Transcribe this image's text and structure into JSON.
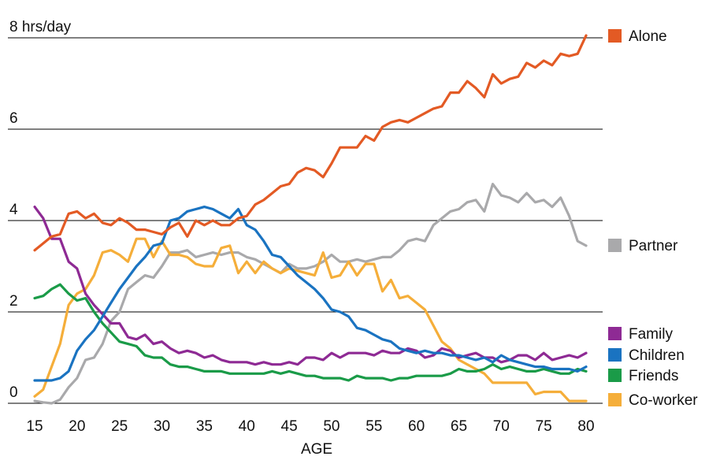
{
  "chart_data": {
    "type": "line",
    "title": "",
    "xlabel": "AGE",
    "ylabel": "",
    "y_unit_label": "8 hrs/day",
    "xlim": [
      15,
      80
    ],
    "ylim": [
      0,
      8
    ],
    "x_ticks": [
      "15",
      "20",
      "25",
      "30",
      "35",
      "40",
      "45",
      "50",
      "55",
      "60",
      "65",
      "70",
      "75",
      "80"
    ],
    "y_ticks": [
      {
        "value": 8,
        "label": "8 hrs/day"
      },
      {
        "value": 6,
        "label": "6"
      },
      {
        "value": 4,
        "label": "4"
      },
      {
        "value": 2,
        "label": "2"
      },
      {
        "value": 0,
        "label": "0"
      }
    ],
    "grid": true,
    "legend_placement": "right, at line ends",
    "x": [
      15,
      16,
      17,
      18,
      19,
      20,
      21,
      22,
      23,
      24,
      25,
      26,
      27,
      28,
      29,
      30,
      31,
      32,
      33,
      34,
      35,
      36,
      37,
      38,
      39,
      40,
      41,
      42,
      43,
      44,
      45,
      46,
      47,
      48,
      49,
      50,
      51,
      52,
      53,
      54,
      55,
      56,
      57,
      58,
      59,
      60,
      61,
      62,
      63,
      64,
      65,
      66,
      67,
      68,
      69,
      70,
      71,
      72,
      73,
      74,
      75,
      76,
      77,
      78,
      79,
      80
    ],
    "series": [
      {
        "name": "Alone",
        "color": "#e35a24",
        "values": [
          3.35,
          3.5,
          3.65,
          3.7,
          4.15,
          4.2,
          4.05,
          4.15,
          3.95,
          3.9,
          4.05,
          3.95,
          3.8,
          3.8,
          3.75,
          3.7,
          3.85,
          3.95,
          3.65,
          4.0,
          3.9,
          4.0,
          3.9,
          3.9,
          4.05,
          4.1,
          4.35,
          4.45,
          4.6,
          4.75,
          4.8,
          5.05,
          5.15,
          5.1,
          4.95,
          5.25,
          5.6,
          5.6,
          5.6,
          5.85,
          5.75,
          6.05,
          6.15,
          6.2,
          6.15,
          6.25,
          6.35,
          6.45,
          6.5,
          6.8,
          6.8,
          7.05,
          6.9,
          6.7,
          7.2,
          7.0,
          7.1,
          7.15,
          7.45,
          7.35,
          7.5,
          7.4,
          7.65,
          7.6,
          7.65,
          8.05
        ]
      },
      {
        "name": "Partner",
        "color": "#a9a9ab",
        "values": [
          0.05,
          0.02,
          0.0,
          0.08,
          0.35,
          0.55,
          0.95,
          1.0,
          1.3,
          1.8,
          2.0,
          2.5,
          2.65,
          2.8,
          2.75,
          3.0,
          3.3,
          3.3,
          3.35,
          3.2,
          3.25,
          3.3,
          3.25,
          3.3,
          3.3,
          3.2,
          3.15,
          3.05,
          2.95,
          2.85,
          3.05,
          2.95,
          2.95,
          3.0,
          3.1,
          3.25,
          3.1,
          3.1,
          3.15,
          3.1,
          3.15,
          3.2,
          3.2,
          3.35,
          3.55,
          3.6,
          3.55,
          3.9,
          4.05,
          4.2,
          4.25,
          4.4,
          4.45,
          4.2,
          4.8,
          4.55,
          4.5,
          4.4,
          4.6,
          4.4,
          4.45,
          4.3,
          4.5,
          4.1,
          3.55,
          3.45
        ]
      },
      {
        "name": "Family",
        "color": "#8e2a94",
        "values": [
          4.3,
          4.05,
          3.6,
          3.6,
          3.1,
          2.95,
          2.4,
          2.15,
          1.95,
          1.75,
          1.75,
          1.45,
          1.4,
          1.5,
          1.3,
          1.35,
          1.2,
          1.1,
          1.15,
          1.1,
          1.0,
          1.05,
          0.95,
          0.9,
          0.9,
          0.9,
          0.85,
          0.9,
          0.85,
          0.85,
          0.9,
          0.85,
          1.0,
          1.0,
          0.95,
          1.1,
          1.0,
          1.1,
          1.1,
          1.1,
          1.05,
          1.15,
          1.1,
          1.1,
          1.2,
          1.15,
          1.0,
          1.05,
          1.2,
          1.15,
          1.0,
          1.05,
          1.1,
          1.0,
          1.0,
          0.9,
          0.95,
          1.05,
          1.05,
          0.95,
          1.1,
          0.95,
          1.0,
          1.05,
          1.0,
          1.1
        ]
      },
      {
        "name": "Children",
        "color": "#1a73c1",
        "values": [
          0.5,
          0.5,
          0.5,
          0.55,
          0.7,
          1.15,
          1.4,
          1.6,
          1.9,
          2.2,
          2.5,
          2.75,
          3.0,
          3.2,
          3.45,
          3.5,
          4.0,
          4.05,
          4.2,
          4.25,
          4.3,
          4.25,
          4.15,
          4.05,
          4.25,
          3.9,
          3.8,
          3.55,
          3.25,
          3.2,
          3.0,
          2.8,
          2.65,
          2.5,
          2.3,
          2.05,
          2.0,
          1.9,
          1.65,
          1.6,
          1.5,
          1.4,
          1.35,
          1.2,
          1.15,
          1.1,
          1.15,
          1.1,
          1.1,
          1.05,
          1.05,
          1.0,
          0.95,
          1.0,
          0.9,
          1.05,
          0.95,
          0.9,
          0.85,
          0.8,
          0.8,
          0.75,
          0.75,
          0.75,
          0.7,
          0.8
        ]
      },
      {
        "name": "Friends",
        "color": "#1a9b48",
        "values": [
          2.3,
          2.35,
          2.5,
          2.6,
          2.4,
          2.25,
          2.3,
          2.0,
          1.75,
          1.55,
          1.35,
          1.3,
          1.25,
          1.05,
          1.0,
          1.0,
          0.85,
          0.8,
          0.8,
          0.75,
          0.7,
          0.7,
          0.7,
          0.65,
          0.65,
          0.65,
          0.65,
          0.65,
          0.7,
          0.65,
          0.7,
          0.65,
          0.6,
          0.6,
          0.55,
          0.55,
          0.55,
          0.5,
          0.6,
          0.55,
          0.55,
          0.55,
          0.5,
          0.55,
          0.55,
          0.6,
          0.6,
          0.6,
          0.6,
          0.65,
          0.75,
          0.7,
          0.7,
          0.75,
          0.85,
          0.75,
          0.8,
          0.75,
          0.7,
          0.7,
          0.75,
          0.7,
          0.65,
          0.65,
          0.75,
          0.7
        ]
      },
      {
        "name": "Co-worker",
        "color": "#f5ae3a",
        "values": [
          0.15,
          0.3,
          0.8,
          1.3,
          2.15,
          2.4,
          2.5,
          2.8,
          3.3,
          3.35,
          3.25,
          3.1,
          3.6,
          3.6,
          3.2,
          3.55,
          3.25,
          3.25,
          3.2,
          3.05,
          3.0,
          3.0,
          3.4,
          3.45,
          2.85,
          3.1,
          2.85,
          3.1,
          2.95,
          2.85,
          2.95,
          2.9,
          2.85,
          2.8,
          3.3,
          2.75,
          2.8,
          3.1,
          2.8,
          3.05,
          3.05,
          2.45,
          2.7,
          2.3,
          2.35,
          2.2,
          2.05,
          1.7,
          1.35,
          1.2,
          0.95,
          0.85,
          0.75,
          0.65,
          0.45,
          0.45,
          0.45,
          0.45,
          0.45,
          0.2,
          0.25,
          0.25,
          0.25,
          0.05,
          0.05,
          0.05
        ]
      }
    ]
  }
}
